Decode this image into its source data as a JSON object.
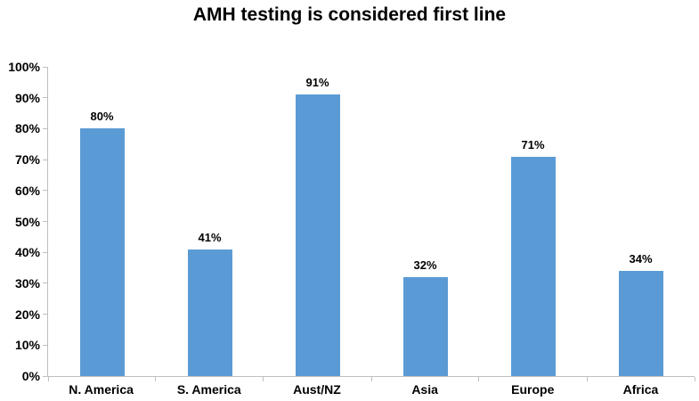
{
  "chart_data": {
    "type": "bar",
    "title": "AMH testing is considered first line",
    "categories": [
      "N. America",
      "S. America",
      "Aust/NZ",
      "Asia",
      "Europe",
      "Africa"
    ],
    "values": [
      80,
      41,
      91,
      32,
      71,
      34
    ],
    "value_labels": [
      "80%",
      "41%",
      "91%",
      "32%",
      "71%",
      "34%"
    ],
    "xlabel": "",
    "ylabel": "",
    "ylim": [
      0,
      100
    ],
    "ytick_step": 10,
    "ytick_labels": [
      "0%",
      "10%",
      "20%",
      "30%",
      "40%",
      "50%",
      "60%",
      "70%",
      "80%",
      "90%",
      "100%"
    ],
    "grid": false,
    "legend_position": "none",
    "bar_color": "#5B9BD5",
    "axis_color": "#BFBFBF",
    "text_color": "#000000",
    "background_color": "#FFFFFF"
  }
}
